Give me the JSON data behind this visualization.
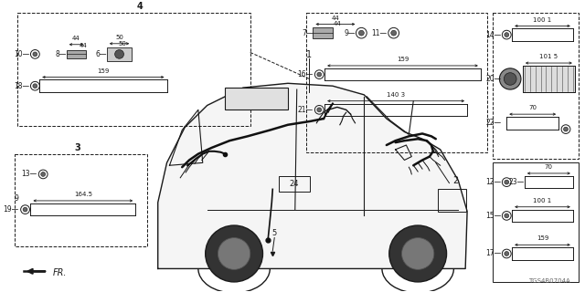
{
  "bg_color": "#ffffff",
  "line_color": "#1a1a1a",
  "gray_color": "#666666",
  "part_number": "TGS4B0704A",
  "figsize": [
    6.4,
    3.2
  ],
  "dpi": 100
}
